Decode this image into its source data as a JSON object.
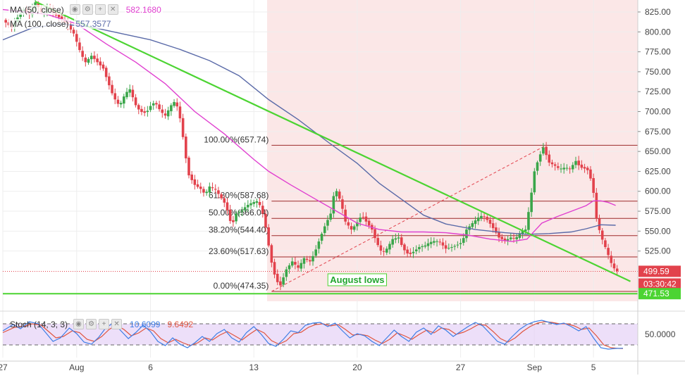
{
  "indicators": {
    "ma50": {
      "label": "MA (50, close)",
      "value": "582.1680",
      "color": "#e040d0"
    },
    "ma100": {
      "label": "MA (100, close)",
      "value": "557.3577",
      "color": "#5a6aa8"
    },
    "stoch": {
      "label": "Stoch (14, 3, 3)",
      "k_value": "10.6099",
      "d_value": "9.6492",
      "k_color": "#3d7ee6",
      "d_color": "#e0553f"
    }
  },
  "colors": {
    "up": "#3aa64a",
    "down": "#e2424c",
    "trendline": "#4cd432",
    "fib": "#9c2a2a",
    "shade": "#fbe7e7",
    "stoch_band": "#e6d2f7"
  },
  "current_price_label": "499.59",
  "countdown_label": "03:30:42",
  "support_label": "471.53",
  "annotation": "August lows",
  "chart_data": {
    "type": "candlestick",
    "price_axis": {
      "range": [
        462,
        840
      ],
      "ticks": [
        "825.00",
        "800.00",
        "775.00",
        "750.00",
        "725.00",
        "700.00",
        "675.00",
        "650.00",
        "625.00",
        "600.00",
        "575.00",
        "550.00",
        "525.00"
      ]
    },
    "stoch_axis": {
      "range": [
        0,
        100
      ],
      "ticks": [
        "50.0000"
      ],
      "band": [
        20,
        80
      ]
    },
    "time_axis": {
      "range_days": [
        0,
        43
      ],
      "ticks": [
        {
          "label": "27",
          "day": 0
        },
        {
          "label": "Aug",
          "day": 5
        },
        {
          "label": "6",
          "day": 10
        },
        {
          "label": "13",
          "day": 17
        },
        {
          "label": "20",
          "day": 24
        },
        {
          "label": "27",
          "day": 31
        },
        {
          "label": "Sep",
          "day": 36
        },
        {
          "label": "5",
          "day": 40
        }
      ]
    },
    "fib_levels": [
      {
        "label": "100.00%(657.74)",
        "price": 657.74
      },
      {
        "label": "61.80%(587.68)",
        "price": 587.68
      },
      {
        "label": "50.00%(566.04)",
        "price": 566.04
      },
      {
        "label": "38.20%(544.40)",
        "price": 544.4
      },
      {
        "label": "23.60%(517.63)",
        "price": 517.63
      },
      {
        "label": "0.00%(474.35)",
        "price": 474.35
      }
    ],
    "support_level": 471.53,
    "last_price": 499.59,
    "shaded_range_days": [
      17.9,
      43
    ],
    "trendline": [
      [
        2.2,
        838
      ],
      [
        42.5,
        487
      ]
    ],
    "fib_diagonal": [
      [
        18.2,
        474.35
      ],
      [
        36.8,
        657.74
      ]
    ],
    "price_anchors": [
      [
        0,
        815
      ],
      [
        0.6,
        805
      ],
      [
        1,
        818
      ],
      [
        1.4,
        828
      ],
      [
        1.8,
        822
      ],
      [
        2.2,
        837
      ],
      [
        2.7,
        822
      ],
      [
        3.1,
        832
      ],
      [
        3.5,
        822
      ],
      [
        3.9,
        817
      ],
      [
        4.4,
        808
      ],
      [
        4.8,
        798
      ],
      [
        5.3,
        772
      ],
      [
        5.6,
        762
      ],
      [
        6,
        770
      ],
      [
        6.4,
        762
      ],
      [
        6.8,
        754
      ],
      [
        7.1,
        738
      ],
      [
        7.5,
        718
      ],
      [
        7.9,
        707
      ],
      [
        8.3,
        723
      ],
      [
        8.6,
        728
      ],
      [
        9,
        708
      ],
      [
        9.3,
        700
      ],
      [
        9.7,
        698
      ],
      [
        10,
        707
      ],
      [
        10.3,
        712
      ],
      [
        10.7,
        700
      ],
      [
        11,
        695
      ],
      [
        11.4,
        708
      ],
      [
        11.7,
        714
      ],
      [
        12.1,
        684
      ],
      [
        12.3,
        652
      ],
      [
        12.6,
        620
      ],
      [
        13,
        608
      ],
      [
        13.4,
        603
      ],
      [
        13.7,
        596
      ],
      [
        14,
        606
      ],
      [
        14.4,
        602
      ],
      [
        14.7,
        594
      ],
      [
        15.1,
        583
      ],
      [
        15.5,
        556
      ],
      [
        15.8,
        572
      ],
      [
        16.2,
        576
      ],
      [
        16.5,
        582
      ],
      [
        16.9,
        586
      ],
      [
        17.3,
        588
      ],
      [
        17.6,
        572
      ],
      [
        17.9,
        546
      ],
      [
        18.1,
        518
      ],
      [
        18.5,
        488
      ],
      [
        18.8,
        482
      ],
      [
        19.2,
        502
      ],
      [
        19.6,
        512
      ],
      [
        20,
        504
      ],
      [
        20.4,
        516
      ],
      [
        20.8,
        512
      ],
      [
        21.1,
        522
      ],
      [
        21.5,
        542
      ],
      [
        21.8,
        556
      ],
      [
        22.2,
        572
      ],
      [
        22.5,
        605
      ],
      [
        22.9,
        586
      ],
      [
        23.2,
        562
      ],
      [
        23.6,
        552
      ],
      [
        23.9,
        558
      ],
      [
        24.3,
        570
      ],
      [
        24.6,
        562
      ],
      [
        25,
        552
      ],
      [
        25.3,
        536
      ],
      [
        25.7,
        522
      ],
      [
        26,
        528
      ],
      [
        26.4,
        540
      ],
      [
        26.8,
        542
      ],
      [
        27.1,
        528
      ],
      [
        27.5,
        520
      ],
      [
        27.8,
        524
      ],
      [
        28.2,
        530
      ],
      [
        28.6,
        532
      ],
      [
        28.9,
        536
      ],
      [
        29.3,
        538
      ],
      [
        29.6,
        536
      ],
      [
        30,
        528
      ],
      [
        30.4,
        530
      ],
      [
        30.7,
        532
      ],
      [
        31.1,
        536
      ],
      [
        31.4,
        552
      ],
      [
        31.8,
        560
      ],
      [
        32.2,
        567
      ],
      [
        32.5,
        570
      ],
      [
        32.9,
        562
      ],
      [
        33.3,
        551
      ],
      [
        33.6,
        542
      ],
      [
        34,
        538
      ],
      [
        34.4,
        542
      ],
      [
        34.7,
        540
      ],
      [
        35.1,
        550
      ],
      [
        35.4,
        552
      ],
      [
        35.7,
        585
      ],
      [
        36,
        625
      ],
      [
        36.3,
        642
      ],
      [
        36.6,
        655
      ],
      [
        37,
        636
      ],
      [
        37.4,
        632
      ],
      [
        37.7,
        628
      ],
      [
        38.1,
        630
      ],
      [
        38.4,
        628
      ],
      [
        38.8,
        638
      ],
      [
        39.1,
        630
      ],
      [
        39.5,
        628
      ],
      [
        39.7,
        625
      ],
      [
        40,
        598
      ],
      [
        40.2,
        566
      ],
      [
        40.5,
        544
      ],
      [
        40.8,
        530
      ],
      [
        41.2,
        510
      ],
      [
        41.5,
        500
      ],
      [
        41.7,
        499.59
      ]
    ],
    "ma50_anchors": [
      [
        0,
        828
      ],
      [
        3,
        822
      ],
      [
        5,
        810
      ],
      [
        7,
        785
      ],
      [
        9,
        762
      ],
      [
        11,
        735
      ],
      [
        13,
        700
      ],
      [
        15,
        672
      ],
      [
        17,
        640
      ],
      [
        18,
        625
      ],
      [
        19.5,
        608
      ],
      [
        21,
        592
      ],
      [
        22.5,
        576
      ],
      [
        24,
        560
      ],
      [
        25.5,
        552
      ],
      [
        27,
        549
      ],
      [
        28.5,
        549
      ],
      [
        30,
        548
      ],
      [
        31.5,
        545
      ],
      [
        33,
        540
      ],
      [
        34.5,
        537
      ],
      [
        35.5,
        540
      ],
      [
        36.5,
        560
      ],
      [
        37.5,
        568
      ],
      [
        38.5,
        575
      ],
      [
        39.5,
        582
      ],
      [
        40,
        588
      ],
      [
        40.5,
        588
      ],
      [
        41,
        586
      ],
      [
        41.5,
        582.17
      ]
    ],
    "ma100_anchors": [
      [
        0,
        790
      ],
      [
        2,
        805
      ],
      [
        4,
        810
      ],
      [
        6,
        806
      ],
      [
        8,
        798
      ],
      [
        10,
        790
      ],
      [
        12,
        778
      ],
      [
        14,
        764
      ],
      [
        16,
        745
      ],
      [
        18,
        715
      ],
      [
        20,
        690
      ],
      [
        22,
        662
      ],
      [
        24,
        635
      ],
      [
        25.5,
        610
      ],
      [
        27,
        590
      ],
      [
        28.5,
        570
      ],
      [
        30,
        559
      ],
      [
        32,
        552
      ],
      [
        34,
        548
      ],
      [
        35.5,
        546
      ],
      [
        37,
        547
      ],
      [
        38.5,
        549
      ],
      [
        39.5,
        553
      ],
      [
        40.5,
        558
      ],
      [
        41.5,
        557.36
      ]
    ],
    "stoch_k": [
      [
        0,
        60
      ],
      [
        0.7,
        78
      ],
      [
        1.2,
        66
      ],
      [
        1.8,
        86
      ],
      [
        2.4,
        80
      ],
      [
        2.9,
        55
      ],
      [
        3.4,
        30
      ],
      [
        3.9,
        40
      ],
      [
        4.5,
        68
      ],
      [
        5,
        52
      ],
      [
        5.5,
        28
      ],
      [
        6,
        22
      ],
      [
        6.5,
        42
      ],
      [
        7,
        70
      ],
      [
        7.5,
        82
      ],
      [
        8,
        60
      ],
      [
        8.5,
        38
      ],
      [
        9,
        55
      ],
      [
        9.5,
        76
      ],
      [
        10,
        58
      ],
      [
        10.5,
        30
      ],
      [
        11,
        18
      ],
      [
        11.5,
        40
      ],
      [
        12,
        22
      ],
      [
        12.5,
        12
      ],
      [
        13,
        26
      ],
      [
        13.5,
        44
      ],
      [
        14,
        30
      ],
      [
        14.5,
        52
      ],
      [
        15,
        64
      ],
      [
        15.5,
        40
      ],
      [
        16,
        28
      ],
      [
        16.5,
        55
      ],
      [
        17,
        72
      ],
      [
        17.5,
        50
      ],
      [
        18,
        24
      ],
      [
        18.5,
        16
      ],
      [
        19,
        36
      ],
      [
        19.5,
        60
      ],
      [
        20,
        55
      ],
      [
        20.5,
        76
      ],
      [
        21,
        82
      ],
      [
        21.5,
        84
      ],
      [
        22,
        72
      ],
      [
        22.5,
        82
      ],
      [
        23,
        60
      ],
      [
        23.5,
        40
      ],
      [
        24,
        52
      ],
      [
        24.5,
        46
      ],
      [
        25,
        30
      ],
      [
        25.5,
        18
      ],
      [
        26,
        40
      ],
      [
        26.5,
        62
      ],
      [
        27,
        44
      ],
      [
        27.5,
        30
      ],
      [
        28,
        56
      ],
      [
        28.5,
        68
      ],
      [
        29,
        50
      ],
      [
        29.5,
        74
      ],
      [
        30,
        62
      ],
      [
        30.5,
        44
      ],
      [
        31,
        58
      ],
      [
        31.5,
        72
      ],
      [
        32,
        84
      ],
      [
        32.5,
        74
      ],
      [
        33,
        52
      ],
      [
        33.5,
        30
      ],
      [
        34,
        22
      ],
      [
        34.5,
        44
      ],
      [
        35,
        64
      ],
      [
        35.5,
        78
      ],
      [
        36,
        86
      ],
      [
        36.5,
        90
      ],
      [
        37,
        84
      ],
      [
        37.5,
        78
      ],
      [
        38,
        82
      ],
      [
        38.5,
        72
      ],
      [
        39,
        60
      ],
      [
        39.5,
        72
      ],
      [
        40,
        40
      ],
      [
        40.5,
        12
      ],
      [
        41,
        8
      ],
      [
        41.5,
        10
      ],
      [
        42,
        10.61
      ]
    ],
    "stoch_d": [
      [
        0,
        55
      ],
      [
        0.8,
        70
      ],
      [
        1.4,
        72
      ],
      [
        2,
        80
      ],
      [
        2.6,
        76
      ],
      [
        3.1,
        58
      ],
      [
        3.6,
        40
      ],
      [
        4.1,
        44
      ],
      [
        4.7,
        60
      ],
      [
        5.2,
        55
      ],
      [
        5.7,
        36
      ],
      [
        6.2,
        30
      ],
      [
        6.7,
        44
      ],
      [
        7.2,
        64
      ],
      [
        7.7,
        76
      ],
      [
        8.2,
        64
      ],
      [
        8.7,
        46
      ],
      [
        9.2,
        54
      ],
      [
        9.7,
        68
      ],
      [
        10.2,
        60
      ],
      [
        10.7,
        38
      ],
      [
        11.2,
        26
      ],
      [
        11.7,
        36
      ],
      [
        12.2,
        26
      ],
      [
        12.7,
        18
      ],
      [
        13.2,
        26
      ],
      [
        13.7,
        40
      ],
      [
        14.2,
        34
      ],
      [
        14.7,
        48
      ],
      [
        15.2,
        58
      ],
      [
        15.7,
        46
      ],
      [
        16.2,
        34
      ],
      [
        16.7,
        50
      ],
      [
        17.2,
        64
      ],
      [
        17.7,
        54
      ],
      [
        18.2,
        32
      ],
      [
        18.7,
        22
      ],
      [
        19.2,
        32
      ],
      [
        19.7,
        52
      ],
      [
        20.2,
        56
      ],
      [
        20.7,
        70
      ],
      [
        21.2,
        78
      ],
      [
        21.7,
        80
      ],
      [
        22.2,
        74
      ],
      [
        22.7,
        78
      ],
      [
        23.2,
        64
      ],
      [
        23.7,
        48
      ],
      [
        24.2,
        50
      ],
      [
        24.7,
        46
      ],
      [
        25.2,
        34
      ],
      [
        25.7,
        24
      ],
      [
        26.2,
        36
      ],
      [
        26.7,
        54
      ],
      [
        27.2,
        46
      ],
      [
        27.7,
        36
      ],
      [
        28.2,
        50
      ],
      [
        28.7,
        62
      ],
      [
        29.2,
        54
      ],
      [
        29.7,
        68
      ],
      [
        30.2,
        64
      ],
      [
        30.7,
        50
      ],
      [
        31.2,
        56
      ],
      [
        31.7,
        66
      ],
      [
        32.2,
        78
      ],
      [
        32.7,
        76
      ],
      [
        33.2,
        58
      ],
      [
        33.7,
        38
      ],
      [
        34.2,
        28
      ],
      [
        34.7,
        40
      ],
      [
        35.2,
        58
      ],
      [
        35.7,
        72
      ],
      [
        36.2,
        82
      ],
      [
        36.7,
        86
      ],
      [
        37.2,
        84
      ],
      [
        37.7,
        80
      ],
      [
        38.2,
        80
      ],
      [
        38.7,
        74
      ],
      [
        39.2,
        64
      ],
      [
        39.7,
        68
      ],
      [
        40.2,
        46
      ],
      [
        40.7,
        20
      ],
      [
        41.2,
        12
      ],
      [
        41.7,
        10
      ],
      [
        42,
        9.65
      ]
    ]
  }
}
